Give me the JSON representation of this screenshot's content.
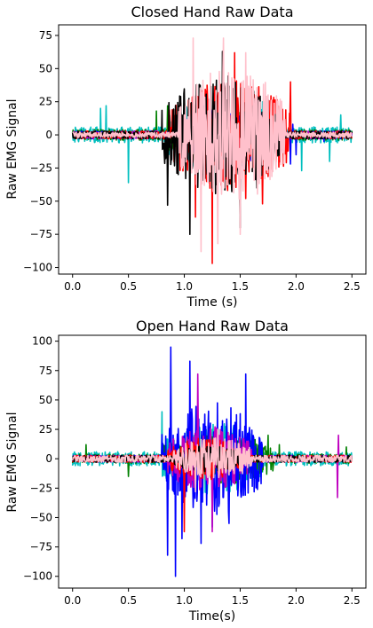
{
  "chart_data": [
    {
      "type": "line",
      "title": "Closed Hand Raw Data",
      "xlabel": "Time (s)",
      "ylabel": "Raw EMG Signal",
      "xlim": [
        -0.125,
        2.625
      ],
      "ylim": [
        -105,
        83
      ],
      "xticks": [
        0.0,
        0.5,
        1.0,
        1.5,
        2.0,
        2.5
      ],
      "xtick_labels": [
        "0.0",
        "0.5",
        "1.0",
        "1.5",
        "2.0",
        "2.5"
      ],
      "yticks": [
        -100,
        -75,
        -50,
        -25,
        0,
        25,
        50,
        75
      ],
      "ytick_labels": [
        "−100",
        "−75",
        "−50",
        "−25",
        "0",
        "25",
        "50",
        "75"
      ],
      "grid": false,
      "series": [
        {
          "color": "#00bfbf",
          "baseline_amp": 6,
          "events": [
            [
              0.5,
              -36
            ],
            [
              0.25,
              20
            ],
            [
              0.3,
              22
            ],
            [
              1.7,
              25
            ],
            [
              2.05,
              -27
            ],
            [
              2.3,
              -20
            ],
            [
              2.4,
              15
            ]
          ],
          "burst": [
            0.85,
            1.85
          ],
          "burst_amp": 22
        },
        {
          "color": "#008000",
          "baseline_amp": 4,
          "events": [
            [
              0.75,
              18
            ],
            [
              0.85,
              22
            ],
            [
              1.9,
              10
            ]
          ],
          "burst": [
            0.85,
            1.8
          ],
          "burst_amp": 18
        },
        {
          "color": "#0000ff",
          "baseline_amp": 3,
          "events": [
            [
              1.95,
              -22
            ],
            [
              2.0,
              -15
            ],
            [
              1.97,
              8
            ],
            [
              2.25,
              -5
            ]
          ],
          "burst": [
            0.95,
            1.9
          ],
          "burst_amp": 18
        },
        {
          "color": "#bf00bf",
          "baseline_amp": 3,
          "events": [],
          "burst": [
            0.95,
            1.8
          ],
          "burst_amp": 10
        },
        {
          "color": "#ff0000",
          "baseline_amp": 3,
          "events": [
            [
              1.25,
              -97
            ],
            [
              1.45,
              62
            ],
            [
              1.95,
              40
            ],
            [
              1.7,
              -52
            ],
            [
              1.55,
              -48
            ],
            [
              1.1,
              -62
            ]
          ],
          "burst": [
            0.85,
            1.95
          ],
          "burst_amp": 40
        },
        {
          "color": "#000000",
          "baseline_amp": 3,
          "events": [
            [
              1.34,
              63
            ],
            [
              0.85,
              -53
            ],
            [
              1.05,
              -75
            ],
            [
              1.5,
              -70
            ],
            [
              1.65,
              -40
            ],
            [
              1.8,
              -15
            ]
          ],
          "burst": [
            0.8,
            1.85
          ],
          "burst_amp": 42
        },
        {
          "color": "#ffc0cb",
          "baseline_amp": 2,
          "events": [
            [
              1.08,
              73
            ],
            [
              1.35,
              73
            ],
            [
              1.55,
              62
            ],
            [
              1.15,
              -88
            ],
            [
              1.3,
              -82
            ],
            [
              1.5,
              -75
            ]
          ],
          "burst": [
            0.95,
            1.9
          ],
          "burst_amp": 50
        }
      ]
    },
    {
      "type": "line",
      "title": "Open Hand Raw Data",
      "xlabel": "Time(s)",
      "ylabel": "Raw EMG Signal",
      "xlim": [
        -0.125,
        2.625
      ],
      "ylim": [
        -110,
        105
      ],
      "xticks": [
        0.0,
        0.5,
        1.0,
        1.5,
        2.0,
        2.5
      ],
      "xtick_labels": [
        "0.0",
        "0.5",
        "1.0",
        "1.5",
        "2.0",
        "2.5"
      ],
      "yticks": [
        -100,
        -75,
        -50,
        -25,
        0,
        25,
        50,
        75,
        100
      ],
      "ytick_labels": [
        "−100",
        "−75",
        "−50",
        "−25",
        "0",
        "25",
        "50",
        "75",
        "100"
      ],
      "grid": false,
      "series": [
        {
          "color": "#00bfbf",
          "baseline_amp": 6,
          "events": [
            [
              0.8,
              40
            ],
            [
              1.25,
              25
            ]
          ],
          "burst": [
            0.8,
            1.7
          ],
          "burst_amp": 25
        },
        {
          "color": "#008000",
          "baseline_amp": 4,
          "events": [
            [
              0.5,
              -15
            ],
            [
              0.12,
              12
            ],
            [
              1.75,
              20
            ],
            [
              1.85,
              12
            ],
            [
              2.45,
              10
            ]
          ],
          "burst": [
            0.8,
            1.8
          ],
          "burst_amp": 18
        },
        {
          "color": "#0000ff",
          "baseline_amp": 3,
          "events": [
            [
              0.88,
              95
            ],
            [
              0.92,
              -100
            ],
            [
              1.05,
              83
            ],
            [
              1.4,
              -55
            ],
            [
              1.55,
              72
            ],
            [
              0.85,
              -82
            ],
            [
              1.15,
              -72
            ],
            [
              1.25,
              -58
            ],
            [
              0.98,
              -68
            ]
          ],
          "burst": [
            0.8,
            1.7
          ],
          "burst_amp": 45
        },
        {
          "color": "#bf00bf",
          "baseline_amp": 3,
          "events": [
            [
              1.12,
              72
            ],
            [
              1.25,
              -62
            ],
            [
              2.37,
              -33
            ],
            [
              2.38,
              20
            ]
          ],
          "burst": [
            0.85,
            1.6
          ],
          "burst_amp": 25
        },
        {
          "color": "#ff0000",
          "baseline_amp": 3,
          "events": [
            [
              1.0,
              -62
            ]
          ],
          "burst": [
            0.85,
            1.5
          ],
          "burst_amp": 15
        },
        {
          "color": "#000000",
          "baseline_amp": 3,
          "events": [],
          "burst": [
            0.9,
            1.5
          ],
          "burst_amp": 8
        },
        {
          "color": "#ffc0cb",
          "baseline_amp": 3,
          "events": [
            [
              1.1,
              -28
            ],
            [
              1.3,
              25
            ]
          ],
          "burst": [
            0.9,
            1.6
          ],
          "burst_amp": 15
        }
      ]
    }
  ]
}
